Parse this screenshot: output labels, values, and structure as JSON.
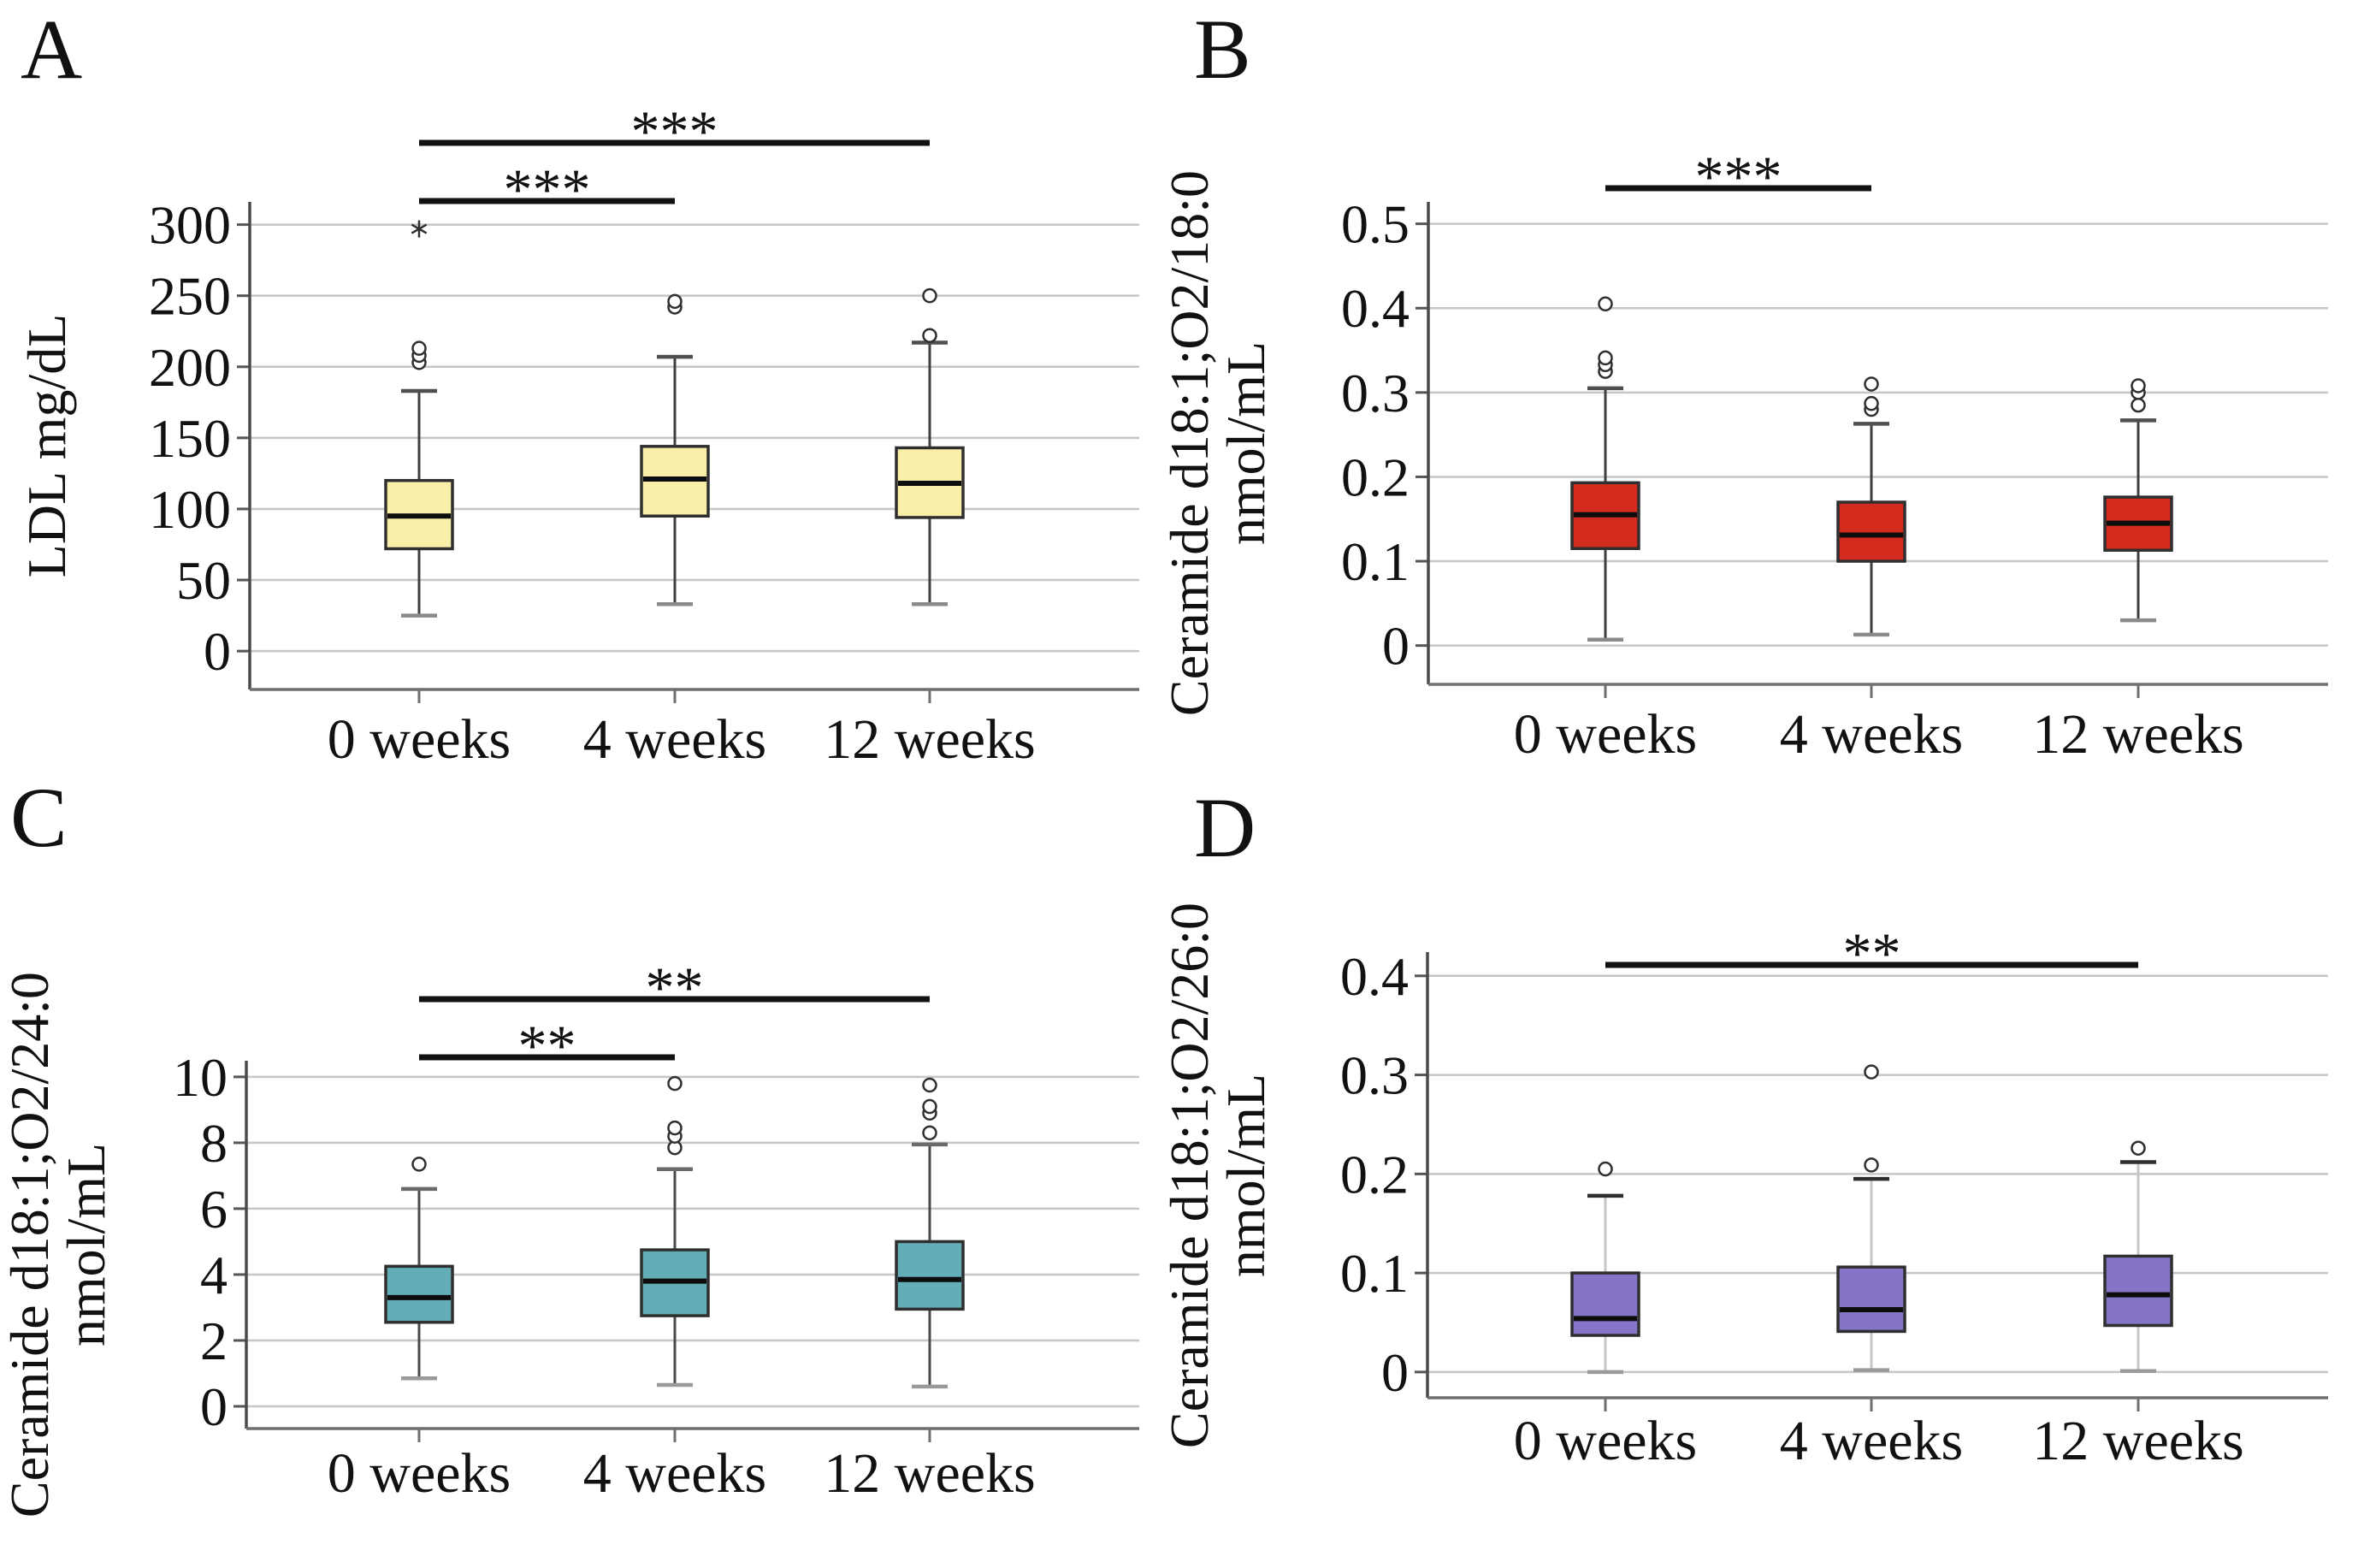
{
  "chart_data": {
    "type": "box",
    "layout_hint": "2x2 grid of box plot panels, gridlines on, no legend",
    "categories": [
      "0 weeks",
      "4 weeks",
      "12 weeks"
    ],
    "panels": [
      {
        "id": "A",
        "letter": "A",
        "y_axis_label_lines": [
          "LDL mg/dL"
        ],
        "y_tick_values": [
          0,
          50,
          100,
          150,
          200,
          250,
          300
        ],
        "y_tick_labels": [
          "0",
          "50",
          "100",
          "150",
          "200",
          "250",
          "300"
        ],
        "ylim": [
          -27,
          316
        ],
        "box_fill": "#FAEFA9",
        "boxes": [
          {
            "category": "0 weeks",
            "whisker_low": 25,
            "q1": 72,
            "median": 95,
            "q3": 120,
            "whisker_high": 183,
            "outliers": [
              203,
              208,
              213
            ],
            "far_outliers": [
              297
            ]
          },
          {
            "category": "4 weeks",
            "whisker_low": 33,
            "q1": 95,
            "median": 121,
            "q3": 144,
            "whisker_high": 207,
            "outliers": [
              242,
              246
            ],
            "far_outliers": []
          },
          {
            "category": "12 weeks",
            "whisker_low": 33,
            "q1": 94,
            "median": 118,
            "q3": 143,
            "whisker_high": 217,
            "outliers": [
              222,
              250
            ],
            "far_outliers": []
          }
        ],
        "significance": [
          {
            "from": "0 weeks",
            "to": "4 weeks",
            "label": "***"
          },
          {
            "from": "0 weeks",
            "to": "12 weeks",
            "label": "***"
          }
        ]
      },
      {
        "id": "B",
        "letter": "B",
        "y_axis_label_lines": [
          "Ceramide d18:1;O2/18:0",
          "nmol/mL"
        ],
        "y_tick_values": [
          0,
          0.1,
          0.2,
          0.3,
          0.4,
          0.5
        ],
        "y_tick_labels": [
          "0",
          "0.1",
          "0.2",
          "0.3",
          "0.4",
          "0.5"
        ],
        "ylim": [
          -0.046,
          0.526
        ],
        "box_fill": "#D32C1F",
        "boxes": [
          {
            "category": "0 weeks",
            "whisker_low": 0.007,
            "q1": 0.115,
            "median": 0.155,
            "q3": 0.193,
            "whisker_high": 0.305,
            "outliers": [
              0.325,
              0.333,
              0.341,
              0.405
            ],
            "far_outliers": []
          },
          {
            "category": "4 weeks",
            "whisker_low": 0.013,
            "q1": 0.1,
            "median": 0.131,
            "q3": 0.17,
            "whisker_high": 0.263,
            "outliers": [
              0.28,
              0.287,
              0.31
            ],
            "far_outliers": []
          },
          {
            "category": "12 weeks",
            "whisker_low": 0.03,
            "q1": 0.113,
            "median": 0.145,
            "q3": 0.176,
            "whisker_high": 0.267,
            "outliers": [
              0.285,
              0.3,
              0.308
            ],
            "far_outliers": []
          }
        ],
        "significance": [
          {
            "from": "0 weeks",
            "to": "4 weeks",
            "label": "***"
          }
        ]
      },
      {
        "id": "C",
        "letter": "C",
        "y_axis_label_lines": [
          "Ceramide d18:1;O2/24:0",
          "nmol/mL"
        ],
        "y_tick_values": [
          0,
          2,
          4,
          6,
          8,
          10
        ],
        "y_tick_labels": [
          "0",
          "2",
          "4",
          "6",
          "8",
          "10"
        ],
        "ylim": [
          -0.675,
          10.49
        ],
        "box_fill": "#63ADB7",
        "boxes": [
          {
            "category": "0 weeks",
            "whisker_low": 0.85,
            "q1": 2.55,
            "median": 3.3,
            "q3": 4.25,
            "whisker_high": 6.6,
            "outliers": [
              7.35
            ],
            "far_outliers": []
          },
          {
            "category": "4 weeks",
            "whisker_low": 0.65,
            "q1": 2.75,
            "median": 3.8,
            "q3": 4.75,
            "whisker_high": 7.2,
            "outliers": [
              7.85,
              8.2,
              8.45,
              9.8
            ],
            "far_outliers": []
          },
          {
            "category": "12 weeks",
            "whisker_low": 0.6,
            "q1": 2.95,
            "median": 3.85,
            "q3": 5.0,
            "whisker_high": 7.95,
            "outliers": [
              8.3,
              8.9,
              9.1,
              9.75
            ],
            "far_outliers": []
          }
        ],
        "significance": [
          {
            "from": "0 weeks",
            "to": "4 weeks",
            "label": "**"
          },
          {
            "from": "0 weeks",
            "to": "12 weeks",
            "label": "**"
          }
        ]
      },
      {
        "id": "D",
        "letter": "D",
        "y_axis_label_lines": [
          "Ceramide d18:1;O2/26:0",
          "nmol/mL"
        ],
        "y_tick_values": [
          0,
          0.1,
          0.2,
          0.3,
          0.4
        ],
        "y_tick_labels": [
          "0",
          "0.1",
          "0.2",
          "0.3",
          "0.4"
        ],
        "ylim": [
          -0.026,
          0.424
        ],
        "box_fill": "#8674C8",
        "boxes": [
          {
            "category": "0 weeks",
            "whisker_low": 0.0,
            "q1": 0.037,
            "median": 0.054,
            "q3": 0.1,
            "whisker_high": 0.178,
            "outliers": [
              0.205
            ],
            "far_outliers": []
          },
          {
            "category": "4 weeks",
            "whisker_low": 0.002,
            "q1": 0.041,
            "median": 0.063,
            "q3": 0.106,
            "whisker_high": 0.195,
            "outliers": [
              0.209,
              0.303
            ],
            "far_outliers": []
          },
          {
            "category": "12 weeks",
            "whisker_low": 0.001,
            "q1": 0.047,
            "median": 0.078,
            "q3": 0.117,
            "whisker_high": 0.212,
            "outliers": [
              0.226
            ],
            "far_outliers": []
          }
        ],
        "significance": [
          {
            "from": "0 weeks",
            "to": "12 weeks",
            "label": "**"
          }
        ]
      }
    ],
    "colors": {
      "panel_A_box": "#FAEFA9",
      "panel_B_box": "#D32C1F",
      "panel_C_box": "#63ADB7",
      "panel_D_box": "#8674C8",
      "gridline": "#C6C6C6",
      "axis": "#4A4A4A",
      "significance_bar": "#111111"
    }
  }
}
